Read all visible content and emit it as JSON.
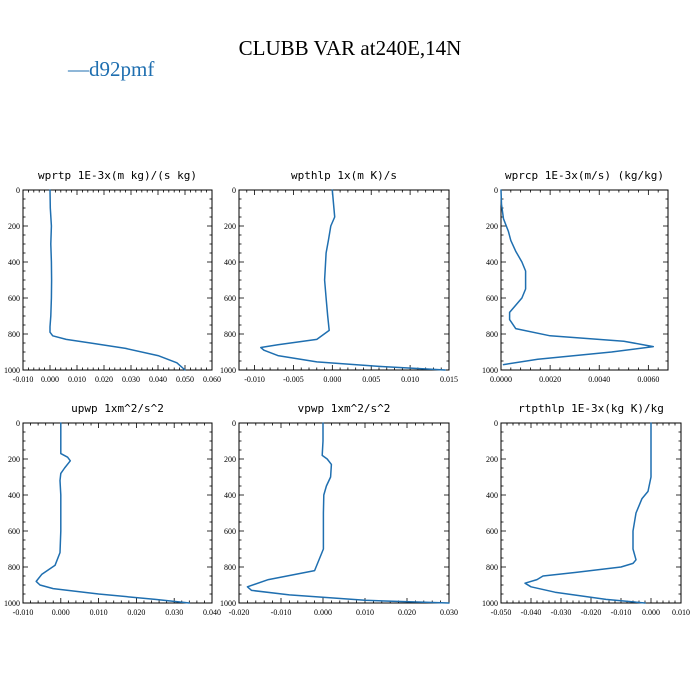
{
  "title": "CLUBB VAR at240E,14N",
  "legend": {
    "label": "d92pmf",
    "color": "#1f6fb0",
    "symbol": "—"
  },
  "chart_data": [
    {
      "type": "line",
      "title": "wprtp  1E-3x(m kg)/(s kg)",
      "xlim": [
        -0.01,
        0.06
      ],
      "ylim": [
        1000,
        0
      ],
      "xticks": [
        "-0.010",
        "0.000",
        "0.010",
        "0.020",
        "0.030",
        "0.040",
        "0.050",
        "0.060"
      ],
      "yticks": [
        "0",
        "200",
        "400",
        "600",
        "800",
        "1000"
      ],
      "series": [
        {
          "name": "d92pmf",
          "x": [
            0.0,
            0.0001,
            0.0005,
            0.0003,
            0.0005,
            0.0006,
            0.0005,
            0.0003,
            0.0,
            0.0,
            0.001,
            0.006,
            0.015,
            0.028,
            0.04,
            0.047,
            0.05
          ],
          "y": [
            0,
            100,
            200,
            300,
            400,
            500,
            600,
            700,
            760,
            790,
            810,
            830,
            850,
            880,
            920,
            960,
            1000
          ]
        }
      ]
    },
    {
      "type": "line",
      "title": "wpthlp  1x(m K)/s",
      "xlim": [
        -0.012,
        0.015
      ],
      "ylim": [
        1000,
        0
      ],
      "xticks": [
        "-0.010",
        "-0.005",
        "0.000",
        "0.005",
        "0.010",
        "0.015"
      ],
      "yticks": [
        "0",
        "200",
        "400",
        "600",
        "800",
        "1000"
      ],
      "series": [
        {
          "name": "d92pmf",
          "x": [
            0.0,
            0.0002,
            0.0003,
            -0.0002,
            -0.0005,
            -0.0008,
            -0.0009,
            -0.001,
            -0.0008,
            -0.0006,
            -0.0004,
            -0.002,
            -0.007,
            -0.0092,
            -0.0088,
            -0.007,
            -0.002,
            0.006,
            0.0145
          ],
          "y": [
            0,
            100,
            150,
            200,
            280,
            350,
            430,
            500,
            600,
            700,
            780,
            830,
            860,
            875,
            890,
            920,
            955,
            980,
            1000
          ]
        }
      ]
    },
    {
      "type": "line",
      "title": "wprcp  1E-3x(m/s) (kg/kg)",
      "xlim": [
        0.0,
        0.0068
      ],
      "ylim": [
        1000,
        0
      ],
      "xticks": [
        "0.0000",
        "0.0020",
        "0.0040",
        "0.0060"
      ],
      "yticks": [
        "0",
        "200",
        "400",
        "600",
        "800",
        "1000"
      ],
      "series": [
        {
          "name": "d92pmf",
          "x": [
            0.0,
            2e-05,
            0.0001,
            0.0003,
            0.0004,
            0.0006,
            0.00085,
            0.001,
            0.001,
            0.00085,
            0.0006,
            0.00035,
            0.00035,
            0.0006,
            0.002,
            0.005,
            0.0062,
            0.0045,
            0.0015,
            0.0001
          ],
          "y": [
            0,
            80,
            160,
            230,
            280,
            340,
            400,
            450,
            550,
            600,
            640,
            680,
            720,
            770,
            810,
            840,
            870,
            900,
            940,
            970
          ]
        }
      ]
    },
    {
      "type": "line",
      "title": "upwp  1xm^2/s^2",
      "xlim": [
        -0.01,
        0.04
      ],
      "ylim": [
        1000,
        0
      ],
      "xticks": [
        "-0.010",
        "0.000",
        "0.010",
        "0.020",
        "0.030",
        "0.040"
      ],
      "yticks": [
        "0",
        "200",
        "400",
        "600",
        "800",
        "1000"
      ],
      "series": [
        {
          "name": "d92pmf",
          "x": [
            0.0,
            0.0,
            0.0,
            0.0018,
            0.0025,
            0.001,
            0.0,
            -0.0002,
            0.0,
            0.0,
            0.0,
            -0.0002,
            -0.0015,
            -0.005,
            -0.0065,
            -0.0055,
            -0.002,
            0.01,
            0.025,
            0.034
          ],
          "y": [
            0,
            100,
            170,
            190,
            210,
            250,
            280,
            320,
            400,
            500,
            600,
            720,
            790,
            840,
            880,
            900,
            920,
            950,
            980,
            1000
          ]
        }
      ]
    },
    {
      "type": "line",
      "title": "vpwp  1xm^2/s^2",
      "xlim": [
        -0.02,
        0.03
      ],
      "ylim": [
        1000,
        0
      ],
      "xticks": [
        "-0.020",
        "-0.010",
        "0.000",
        "0.010",
        "0.020",
        "0.030"
      ],
      "yticks": [
        "0",
        "200",
        "400",
        "600",
        "800",
        "1000"
      ],
      "series": [
        {
          "name": "d92pmf",
          "x": [
            0.0,
            0.0,
            -0.0002,
            0.001,
            0.002,
            0.0018,
            0.0008,
            0.0002,
            0.0001,
            0.0001,
            0.0001,
            -0.002,
            -0.013,
            -0.018,
            -0.017,
            -0.008,
            0.01,
            0.03
          ],
          "y": [
            0,
            100,
            180,
            200,
            230,
            300,
            350,
            400,
            500,
            600,
            700,
            820,
            870,
            910,
            930,
            955,
            985,
            1000
          ]
        }
      ]
    },
    {
      "type": "line",
      "title": "rtpthlp  1E-3x(kg K)/kg",
      "xlim": [
        -0.05,
        0.01
      ],
      "ylim": [
        1000,
        0
      ],
      "xticks": [
        "-0.050",
        "-0.040",
        "-0.030",
        "-0.020",
        "-0.010",
        "0.000",
        "0.010"
      ],
      "yticks": [
        "0",
        "200",
        "400",
        "600",
        "800",
        "1000"
      ],
      "series": [
        {
          "name": "d92pmf",
          "x": [
            0.0,
            0.0,
            0.0,
            -0.001,
            -0.003,
            -0.005,
            -0.006,
            -0.006,
            -0.005,
            -0.006,
            -0.01,
            -0.025,
            -0.036,
            -0.038,
            -0.042,
            -0.04,
            -0.032,
            -0.015,
            -0.002
          ],
          "y": [
            0,
            100,
            300,
            380,
            420,
            500,
            600,
            700,
            760,
            780,
            800,
            830,
            850,
            870,
            890,
            910,
            940,
            980,
            1000
          ]
        }
      ]
    }
  ]
}
